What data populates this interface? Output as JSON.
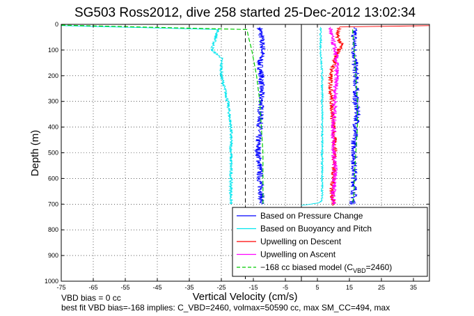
{
  "chart_data": {
    "type": "line",
    "title": "SG503 Ross2012, dive 258 started 25-Dec-2012 13:02:34",
    "xlabel": "Vertical Velocity (cm/s)",
    "ylabel": "Depth (m)",
    "xlim": [
      -75,
      40
    ],
    "ylim": [
      1000,
      0
    ],
    "y_reversed": true,
    "xticks": [
      -75,
      -65,
      -55,
      -45,
      -35,
      -25,
      -15,
      -5,
      5,
      15,
      25,
      35
    ],
    "yticks": [
      0,
      100,
      200,
      300,
      400,
      500,
      600,
      700,
      800,
      900,
      1000
    ],
    "grid": "dotted",
    "legend_position": "lower-right",
    "vertical_lines": [
      {
        "x": -17.5,
        "style": "dashed",
        "color": "#000000"
      },
      {
        "x": 0,
        "style": "solid",
        "color": "#000000"
      }
    ],
    "series": [
      {
        "name": "Based on Pressure Change",
        "color": "#0000ff",
        "style": "solid",
        "noise": 1.0,
        "x": [
          -13,
          -12.5,
          -12,
          -13,
          -12.5,
          -12.5,
          -13,
          -13.5,
          -13.5,
          -13,
          -13,
          -12.5,
          -12.5
        ],
        "y": [
          10,
          50,
          100,
          150,
          200,
          300,
          400,
          450,
          500,
          550,
          600,
          650,
          700
        ]
      },
      {
        "name": "Based on Pressure Change",
        "color": "#0000ff",
        "style": "solid",
        "noise": 1.0,
        "x": [
          16.5,
          16.5,
          16.5,
          17,
          17,
          17.5,
          17,
          16.5,
          16.5,
          16.5,
          16.5,
          16
        ],
        "y": [
          10,
          50,
          100,
          200,
          300,
          350,
          400,
          450,
          500,
          600,
          650,
          700
        ]
      },
      {
        "name": "Based on Buoyancy and Pitch",
        "color": "#00e5ee",
        "style": "solid",
        "noise": 0.5,
        "x": [
          -75,
          -26,
          -27,
          -28,
          -25,
          -25,
          -23,
          -22,
          -22,
          -22,
          -22,
          -22,
          -22
        ],
        "y": [
          5,
          20,
          60,
          100,
          130,
          200,
          300,
          400,
          450,
          500,
          560,
          650,
          700
        ]
      },
      {
        "name": "Based on Buoyancy and Pitch",
        "color": "#00e5ee",
        "style": "solid",
        "noise": 0.3,
        "x": [
          6,
          6,
          6.5,
          6.5,
          6.5,
          6.5,
          6.5,
          6.5,
          6.5,
          5.5,
          0
        ],
        "y": [
          10,
          100,
          200,
          300,
          400,
          500,
          600,
          650,
          685,
          695,
          705
        ]
      },
      {
        "name": "Upwelling on Descent",
        "color": "#ff0000",
        "style": "solid",
        "noise": 0.8,
        "x": [
          40,
          12,
          11,
          12.5,
          11,
          9,
          9.5,
          10,
          10.5,
          10,
          9.5,
          10,
          10
        ],
        "y": [
          5,
          10,
          40,
          80,
          120,
          200,
          300,
          400,
          500,
          600,
          650,
          700,
          705
        ]
      },
      {
        "name": "Upwelling on Ascent",
        "color": "#ff00ff",
        "style": "solid",
        "noise": 0.8,
        "x": [
          9,
          9.5,
          10.5,
          11,
          11,
          10.5,
          10,
          10,
          10.5,
          10.5,
          10,
          10
        ],
        "y": [
          10,
          50,
          100,
          150,
          200,
          300,
          400,
          500,
          550,
          600,
          650,
          700
        ]
      },
      {
        "name": "-168 cc biased model (CVBD=2460)",
        "color": "#00cc00",
        "style": "dashed",
        "noise": 0,
        "x": [
          -75,
          -17,
          -16.5,
          -15.5,
          -14,
          -13,
          -12.5,
          -12,
          -12,
          -12,
          -12
        ],
        "y": [
          3,
          20,
          50,
          100,
          200,
          300,
          400,
          500,
          600,
          650,
          700
        ]
      },
      {
        "name": "-168 cc biased model (CVBD=2460)",
        "color": "#00cc00",
        "style": "dashed",
        "noise": 0,
        "x": [
          16,
          16.5,
          17,
          17.5,
          17.5,
          17,
          16.5,
          16.5,
          16
        ],
        "y": [
          20,
          100,
          200,
          300,
          400,
          500,
          600,
          650,
          700
        ]
      }
    ],
    "legend": [
      {
        "label": "Based on Pressure Change",
        "color": "#0000ff",
        "style": "solid"
      },
      {
        "label": "Based on Buoyancy and Pitch",
        "color": "#00e5ee",
        "style": "solid"
      },
      {
        "label": "Upwelling on Descent",
        "color": "#ff0000",
        "style": "solid"
      },
      {
        "label": "Upwelling on Ascent",
        "color": "#ff00ff",
        "style": "solid"
      },
      {
        "label": "−168 cc biased model (C",
        "sub": "VBD",
        "label_end": "=2460)",
        "color": "#00cc00",
        "style": "dashed"
      }
    ],
    "footer": [
      "VBD bias = 0 cc",
      "best fit VBD bias=-168 implies: C_VBD=2460, volmax=50590 cc, max SM_CC=494, max"
    ]
  }
}
